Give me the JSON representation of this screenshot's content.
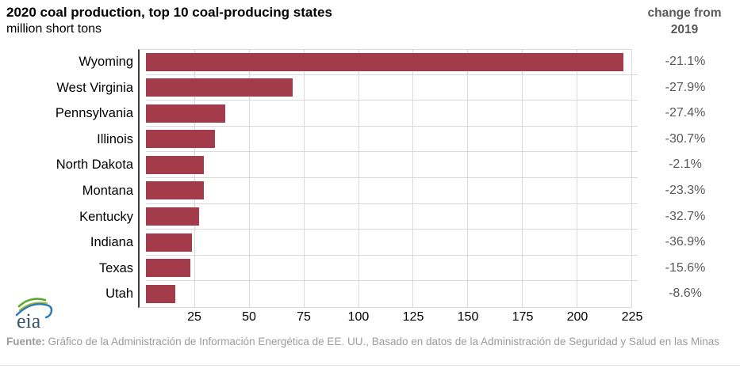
{
  "header": {
    "title": "2020 coal production, top 10 coal-producing states",
    "subtitle": "million short tons"
  },
  "change_column": {
    "header_line1": "change from",
    "header_line2": "2019"
  },
  "chart_data": {
    "type": "bar",
    "orientation": "horizontal",
    "title": "2020 coal production, top 10 coal-producing states",
    "units_label": "million short tons",
    "categories": [
      "Wyoming",
      "West Virginia",
      "Pennsylvania",
      "Illinois",
      "North Dakota",
      "Montana",
      "Kentucky",
      "Indiana",
      "Texas",
      "Utah"
    ],
    "values": [
      218.6,
      67.2,
      36.3,
      31.6,
      26.4,
      26.4,
      24.3,
      20.9,
      20.5,
      13.6
    ],
    "change_from_2019": [
      "-21.1%",
      "-27.9%",
      "-27.4%",
      "-30.7%",
      "-2.1%",
      "-23.3%",
      "-32.7%",
      "-36.9%",
      "-15.6%",
      "-8.6%"
    ],
    "xticks": [
      25,
      50,
      75,
      100,
      125,
      150,
      175,
      200,
      225
    ],
    "xlim": [
      0,
      225
    ],
    "grid": true,
    "legend": "none",
    "bar_color": "#A33B4B",
    "gridline_color": "#D9D9D9",
    "axis_line_color": "#3F3F3F",
    "secondary_text_color": "#595959"
  },
  "footer": {
    "source_label": "Fuente:",
    "source_text": " Gráfico de la Administración de Información Energética de EE. UU., Basado en datos de la Administración de Seguridad y Salud en las Minas"
  },
  "logo": {
    "text": "eia"
  }
}
